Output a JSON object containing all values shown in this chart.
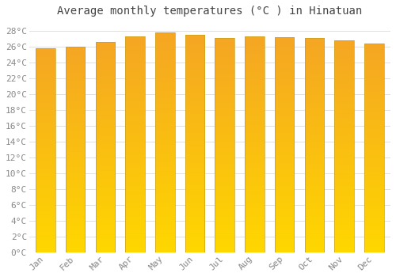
{
  "months": [
    "Jan",
    "Feb",
    "Mar",
    "Apr",
    "May",
    "Jun",
    "Jul",
    "Aug",
    "Sep",
    "Oct",
    "Nov",
    "Dec"
  ],
  "values": [
    25.8,
    26.0,
    26.6,
    27.3,
    27.8,
    27.5,
    27.1,
    27.3,
    27.2,
    27.1,
    26.8,
    26.4
  ],
  "title": "Average monthly temperatures (°C ) in Hinatuan",
  "ylim": [
    0,
    29
  ],
  "yticks": [
    0,
    2,
    4,
    6,
    8,
    10,
    12,
    14,
    16,
    18,
    20,
    22,
    24,
    26,
    28
  ],
  "ytick_labels": [
    "0°C",
    "2°C",
    "4°C",
    "6°C",
    "8°C",
    "10°C",
    "12°C",
    "14°C",
    "16°C",
    "18°C",
    "20°C",
    "22°C",
    "24°C",
    "26°C",
    "28°C"
  ],
  "bar_color_top": "#F5A623",
  "bar_color_bottom": "#FFD700",
  "bar_edge_color": "#C8A020",
  "background_color": "#FFFFFF",
  "plot_bg_color": "#FFFFFF",
  "grid_color": "#DDDDEE",
  "title_fontsize": 10,
  "tick_fontsize": 8,
  "title_color": "#444444",
  "tick_color": "#888888",
  "bar_width": 0.65
}
